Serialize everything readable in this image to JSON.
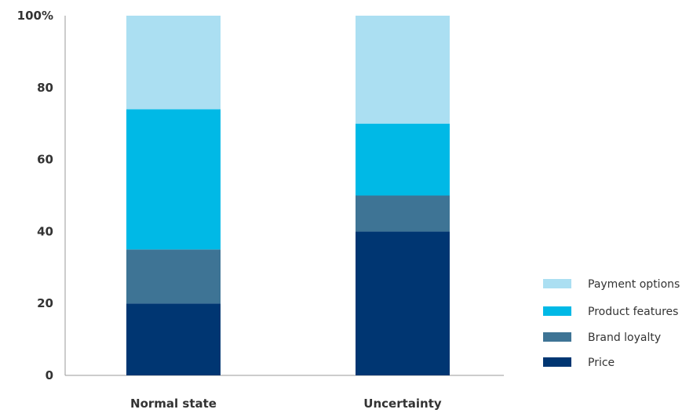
{
  "chart_data": {
    "type": "bar",
    "stacked": true,
    "title": "",
    "xlabel": "",
    "ylabel": "",
    "ylim": [
      0,
      100
    ],
    "yticks": [
      "0",
      "20",
      "40",
      "60",
      "80",
      "100%"
    ],
    "categories": [
      "Normal state",
      "Uncertainty"
    ],
    "series": [
      {
        "name": "Price",
        "values": [
          20,
          40
        ],
        "color": "#003672"
      },
      {
        "name": "Brand loyalty",
        "values": [
          15,
          10
        ],
        "color": "#3e7495"
      },
      {
        "name": "Product features",
        "values": [
          39,
          20
        ],
        "color": "#00b9e6"
      },
      {
        "name": "Payment options",
        "values": [
          26,
          30
        ],
        "color": "#abdff2"
      }
    ],
    "legend": {
      "position": "bottom-right",
      "order": [
        "Payment options",
        "Product features",
        "Brand loyalty",
        "Price"
      ]
    },
    "grid": false
  }
}
